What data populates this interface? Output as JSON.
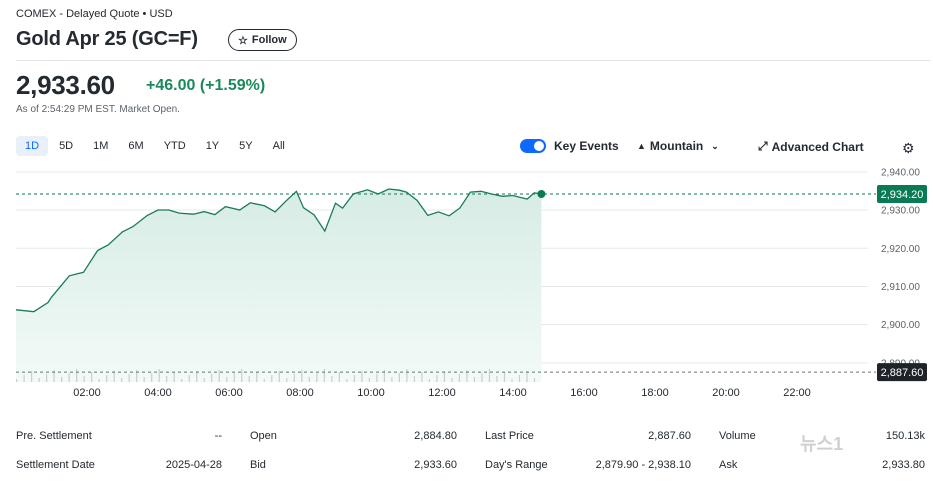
{
  "header": {
    "meta": "COMEX - Delayed Quote • USD",
    "title": "Gold Apr 25 (GC=F)",
    "follow_label": "Follow",
    "price": "2,933.60",
    "change": "+46.00 (+1.59%)",
    "as_of": "As of 2:54:29 PM EST. Market Open."
  },
  "ranges": [
    "1D",
    "5D",
    "1M",
    "6M",
    "YTD",
    "1Y",
    "5Y",
    "All"
  ],
  "active_range": "1D",
  "controls": {
    "key_events": "Key Events",
    "chart_type": "Mountain",
    "advanced": "Advanced Chart"
  },
  "colors": {
    "accent": "#0f69ff",
    "line": "#1b7a5e",
    "fill": "#d6ece4",
    "badge_current": "#0a7a55",
    "badge_prev": "#1d2329"
  },
  "chart_data": {
    "type": "area",
    "x_ticks": [
      "02:00",
      "04:00",
      "06:00",
      "08:00",
      "10:00",
      "12:00",
      "14:00",
      "16:00",
      "18:00",
      "20:00",
      "22:00"
    ],
    "x_range_hours": [
      0.0,
      24.0
    ],
    "y_ticks": [
      "2,940.00",
      "2,930.00",
      "2,920.00",
      "2,910.00",
      "2,900.00",
      "2,890.00"
    ],
    "y_tick_values": [
      2940,
      2930,
      2920,
      2910,
      2900,
      2890
    ],
    "ylim": [
      2885.0,
      2941.0
    ],
    "current_price_label": "2,934.20",
    "current_price": 2934.2,
    "prev_close_label": "2,887.60",
    "prev_close": 2887.6,
    "x_hours": [
      0.0,
      0.5,
      0.9,
      1.0,
      1.5,
      1.9,
      2.3,
      2.6,
      3.0,
      3.3,
      3.7,
      4.0,
      4.3,
      4.6,
      5.0,
      5.3,
      5.6,
      5.9,
      6.3,
      6.6,
      7.0,
      7.3,
      7.6,
      7.9,
      8.1,
      8.4,
      8.7,
      9.0,
      9.2,
      9.5,
      9.9,
      10.2,
      10.5,
      10.8,
      11.0,
      11.3,
      11.6,
      11.9,
      12.2,
      12.5,
      12.8,
      13.1,
      13.4,
      13.7,
      14.0,
      14.2,
      14.4,
      14.6,
      14.8
    ],
    "values": [
      2903.9,
      2903.4,
      2905.8,
      2907.2,
      2912.8,
      2913.7,
      2919.4,
      2920.9,
      2924.3,
      2925.7,
      2928.6,
      2930.0,
      2930.0,
      2929.2,
      2928.9,
      2929.6,
      2928.8,
      2930.9,
      2930.0,
      2931.9,
      2931.1,
      2929.5,
      2932.3,
      2934.9,
      2930.6,
      2928.7,
      2924.5,
      2931.8,
      2930.5,
      2934.2,
      2935.3,
      2934.2,
      2935.5,
      2935.2,
      2934.7,
      2932.5,
      2928.6,
      2929.5,
      2928.5,
      2930.5,
      2934.7,
      2934.9,
      2934.2,
      2933.6,
      2933.8,
      2933.3,
      2932.9,
      2934.5,
      2934.2
    ]
  },
  "stats": [
    [
      {
        "label": "Pre. Settlement",
        "value": "--"
      },
      {
        "label": "Open",
        "value": "2,884.80"
      },
      {
        "label": "Last Price",
        "value": "2,887.60"
      },
      {
        "label": "Volume",
        "value": "150.13k"
      }
    ],
    [
      {
        "label": "Settlement Date",
        "value": "2025-04-28"
      },
      {
        "label": "Bid",
        "value": "2,933.60"
      },
      {
        "label": "Day's Range",
        "value": "2,879.90 - 2,938.10"
      },
      {
        "label": "Ask",
        "value": "2,933.80"
      }
    ]
  ],
  "watermark": "뉴스1"
}
